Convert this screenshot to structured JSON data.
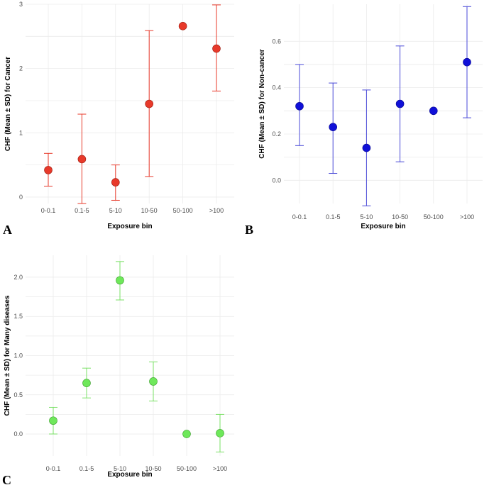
{
  "chart_data": [
    {
      "type": "scatter",
      "panel_label": "A",
      "xlabel": "Exposure bin",
      "ylabel": "CHF (Mean ± SD) for Cancer",
      "categories": [
        "0-0.1",
        "0.1-5",
        "5-10",
        "10-50",
        "50-100",
        ">100"
      ],
      "series": [
        {
          "name": "Cancer",
          "values": [
            0.42,
            0.59,
            0.23,
            1.45,
            2.66,
            2.31
          ],
          "lower": [
            0.17,
            -0.1,
            -0.05,
            0.32,
            null,
            1.65
          ],
          "upper": [
            0.68,
            1.29,
            0.5,
            2.59,
            null,
            2.99
          ]
        }
      ],
      "ylim": [
        -0.1,
        3.0
      ],
      "yticks": [
        0,
        1,
        2,
        3
      ],
      "ytick_labels": [
        "0",
        "1",
        "2",
        "3"
      ],
      "color": "#e8392a",
      "marker_edge": "#9b1c10",
      "bar_color": "#e8392a"
    },
    {
      "type": "scatter",
      "panel_label": "B",
      "xlabel": "Exposure bin",
      "ylabel": "CHF (Mean ± SD) for Non-cancer",
      "categories": [
        "0-0.1",
        "0.1-5",
        "5-10",
        "10-50",
        "50-100",
        ">100"
      ],
      "series": [
        {
          "name": "Non-cancer",
          "values": [
            0.32,
            0.23,
            0.14,
            0.33,
            0.3,
            0.51
          ],
          "lower": [
            0.15,
            0.03,
            -0.11,
            0.08,
            null,
            0.27
          ],
          "upper": [
            0.5,
            0.42,
            0.39,
            0.58,
            null,
            0.75
          ]
        }
      ],
      "ylim": [
        -0.1,
        0.76
      ],
      "yticks": [
        0.0,
        0.2,
        0.4,
        0.6
      ],
      "ytick_labels": [
        "0.0",
        "0.2",
        "0.4",
        "0.6"
      ],
      "color": "#1010d8",
      "marker_edge": "#0a0a90",
      "bar_color": "#4a4ad8"
    },
    {
      "type": "scatter",
      "panel_label": "C",
      "xlabel": "Exposure bin",
      "ylabel": "CHF (Mean ± SD) for Many diseases",
      "categories": [
        "0-0.1",
        "0.1-5",
        "5-10",
        "10-50",
        "50-100",
        ">100"
      ],
      "series": [
        {
          "name": "Many diseases",
          "values": [
            0.17,
            0.65,
            1.96,
            0.67,
            0.0,
            0.01
          ],
          "lower": [
            0.0,
            0.46,
            1.71,
            0.42,
            null,
            -0.23
          ],
          "upper": [
            0.34,
            0.84,
            2.2,
            0.92,
            null,
            0.25
          ]
        }
      ],
      "ylim": [
        -0.28,
        2.28
      ],
      "yticks": [
        0.0,
        0.5,
        1.0,
        1.5,
        2.0
      ],
      "ytick_labels": [
        "0.0",
        "0.5",
        "1.0",
        "1.5",
        "2.0"
      ],
      "color": "#6ee85a",
      "marker_edge": "#3aa02a",
      "bar_color": "#7ae066"
    }
  ]
}
